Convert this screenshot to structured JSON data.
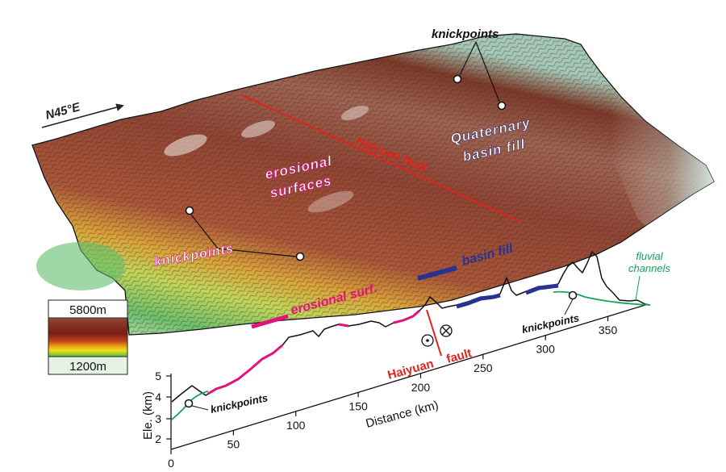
{
  "orientation": {
    "label": "N45°E"
  },
  "map_labels": {
    "knickpoints_top": "knickpoints",
    "quaternary_1": "Quaternary",
    "quaternary_2": "basin fill",
    "haiyuan": "Haiyuan fault",
    "erosional_1": "erosional",
    "erosional_2": "surfaces",
    "knickpoints_left": "knickpoints"
  },
  "legend": {
    "elevation_max": "5800m",
    "elevation_min": "1200m",
    "gradient_colors": [
      "#ffffff",
      "#b7978d",
      "#8e3c2a",
      "#7a1d18",
      "#c2411a",
      "#e7a017",
      "#f2e019",
      "#58b94b",
      "#2a9a43",
      "#cfe9b8",
      "#e3f1f2"
    ]
  },
  "profile": {
    "legend_erosional": "erosional surf.",
    "legend_basin": "basin fill",
    "fluvial_label_1": "fluvial",
    "fluvial_label_2": "channels",
    "knickpoints_right": "knickpoints",
    "knickpoints_left": "knickpoints",
    "fault_1": "Haiyuan",
    "fault_2": "fault",
    "y_axis_label": "Ele. (km)",
    "x_axis_label": "Distance (km)",
    "y_ticks": [
      "2",
      "3",
      "4",
      "5"
    ],
    "x_ticks": [
      "0",
      "50",
      "100",
      "150",
      "200",
      "250",
      "300",
      "350"
    ]
  },
  "colors": {
    "erosional": "#e0137d",
    "basin": "#27338f",
    "fluvial": "#15a35a",
    "fault": "#e2231a",
    "label_pink": "#e0137d"
  }
}
